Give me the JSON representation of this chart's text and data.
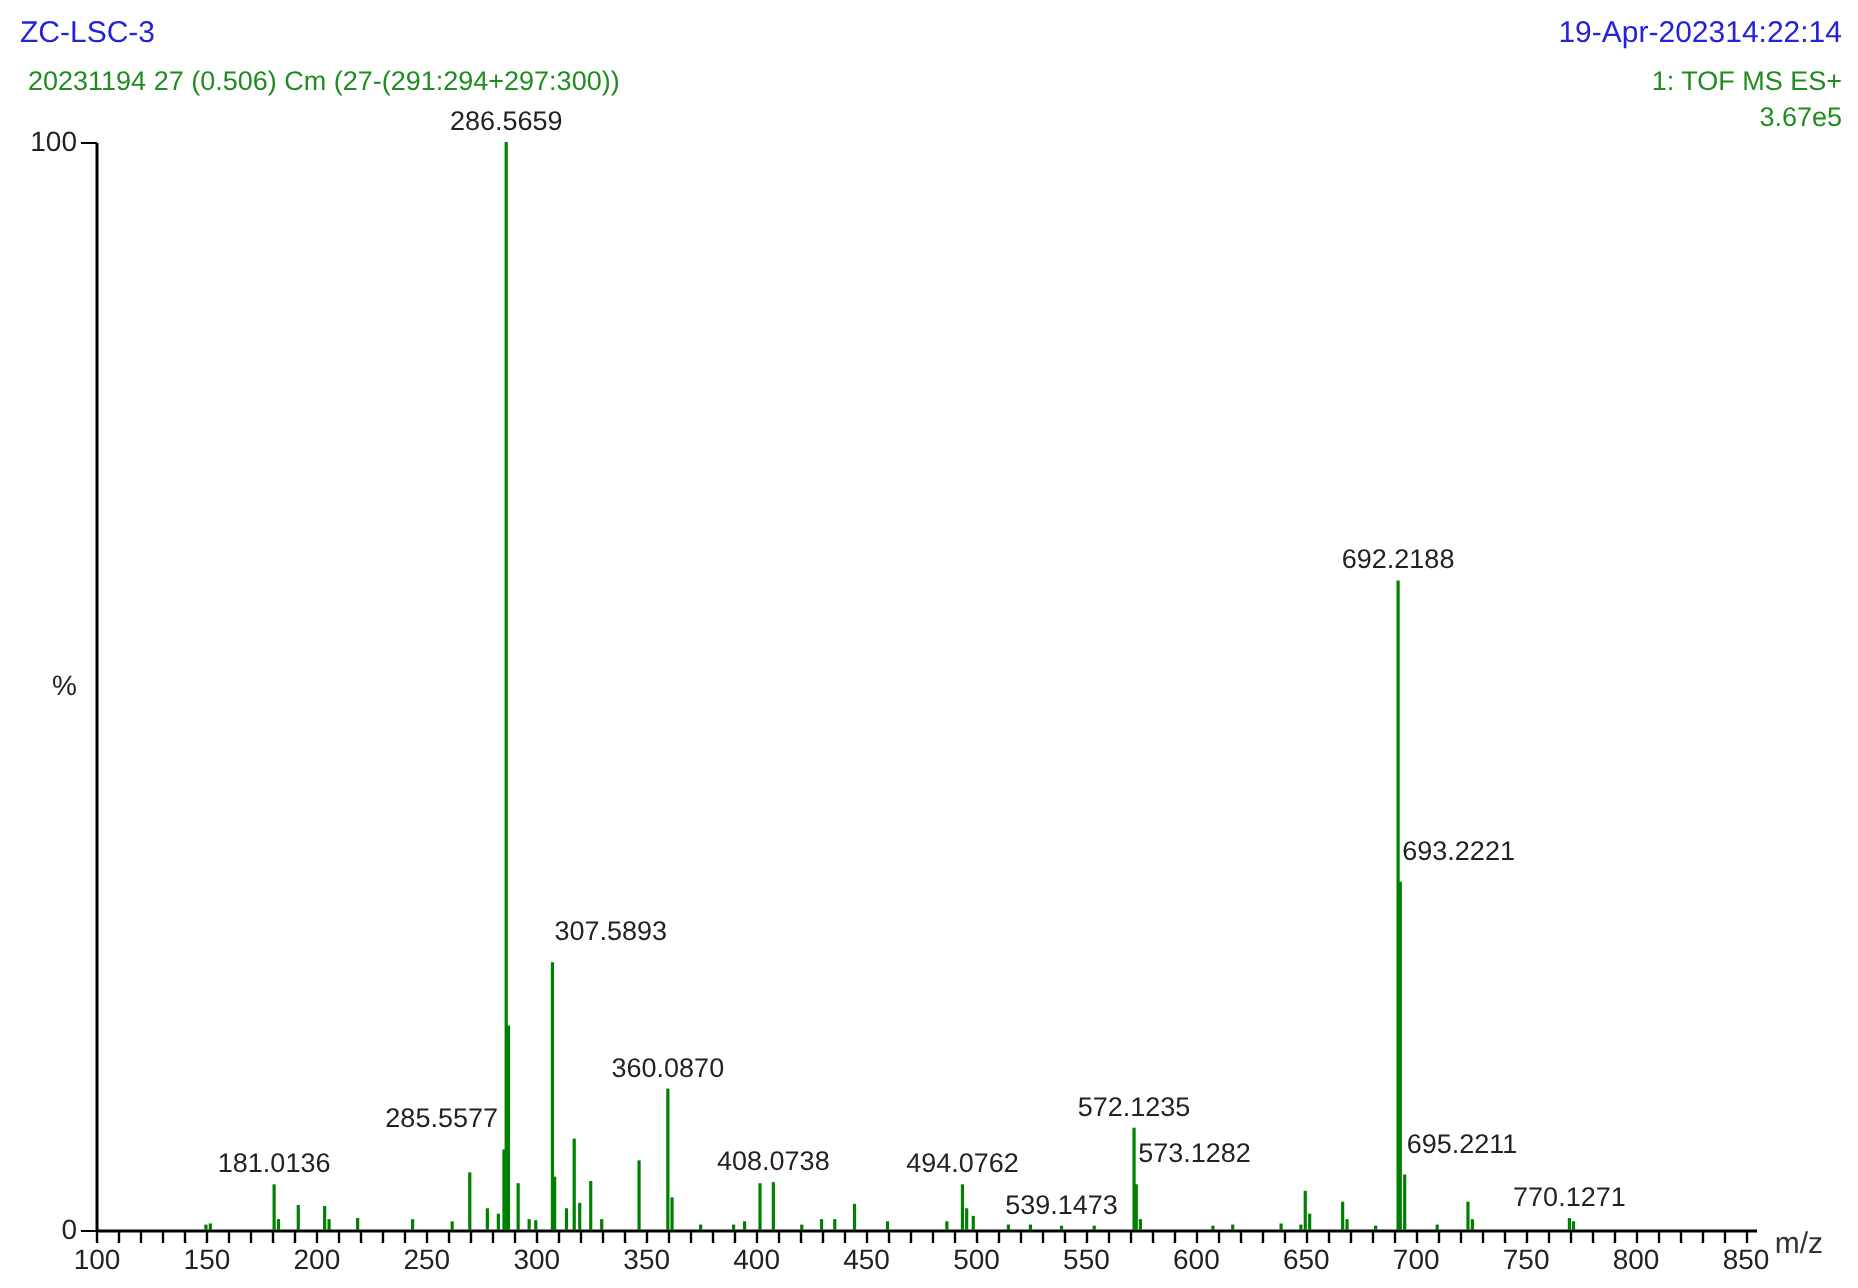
{
  "chart_data": {
    "type": "bar",
    "title": "ZC-LSC-3",
    "subtitle": "20231194 27 (0.506) Cm (27-(291:294+297:300))",
    "xlabel": "m/z",
    "ylabel": "%",
    "x": [
      150,
      152,
      181.0136,
      183,
      192,
      204,
      206,
      219,
      244,
      262,
      270,
      278,
      283,
      285.5577,
      286.5659,
      287.6,
      292,
      297,
      300,
      307.5893,
      308.6,
      314,
      317.5,
      320,
      325,
      330,
      347,
      360.087,
      362,
      375,
      390,
      395,
      402,
      408.0738,
      421,
      430,
      436,
      445,
      460,
      487,
      494.0762,
      496,
      499,
      515,
      525,
      539.1473,
      554,
      572.1235,
      573.1282,
      575,
      608,
      617,
      639,
      648,
      650,
      652,
      667,
      669,
      682,
      692.2188,
      693.2221,
      695.2211,
      710,
      724,
      726,
      770.1271,
      772
    ],
    "values": [
      0.5,
      0.6,
      4.2,
      1.0,
      2.3,
      2.2,
      1.0,
      1.1,
      1.0,
      0.8,
      5.3,
      2.0,
      1.5,
      7.4,
      100,
      18.8,
      4.3,
      1.0,
      0.9,
      24.6,
      4.9,
      2.0,
      8.4,
      2.5,
      4.5,
      1.0,
      6.4,
      13.0,
      3.0,
      0.5,
      0.5,
      0.8,
      4.3,
      4.4,
      0.5,
      1.0,
      1.0,
      2.4,
      0.8,
      0.8,
      4.2,
      2.0,
      1.3,
      0.5,
      0.5,
      0.4,
      0.4,
      9.4,
      4.2,
      1.0,
      0.4,
      0.5,
      0.6,
      0.5,
      3.6,
      1.5,
      2.6,
      1.0,
      0.4,
      59.7,
      32.0,
      5.1,
      0.5,
      2.6,
      1.0,
      1.1,
      0.8
    ],
    "color": "#008000",
    "xlim": [
      100,
      855
    ],
    "ylim": [
      0,
      100
    ],
    "xticks": [
      100,
      {
        "value": 110,
        "label": null
      },
      {
        "value": 120,
        "label": null
      },
      {
        "value": 130,
        "label": null
      },
      {
        "value": 140,
        "label": null
      },
      150,
      {
        "value": 160,
        "label": null
      },
      {
        "value": 170,
        "label": null
      },
      {
        "value": 180,
        "label": null
      },
      {
        "value": 190,
        "label": null
      },
      200,
      {
        "value": 210,
        "label": null
      },
      {
        "value": 220,
        "label": null
      },
      {
        "value": 230,
        "label": null
      },
      {
        "value": 240,
        "label": null
      },
      250,
      {
        "value": 260,
        "label": null
      },
      {
        "value": 270,
        "label": null
      },
      {
        "value": 280,
        "label": null
      },
      {
        "value": 290,
        "label": null
      },
      300,
      {
        "value": 310,
        "label": null
      },
      {
        "value": 320,
        "label": null
      },
      {
        "value": 330,
        "label": null
      },
      {
        "value": 340,
        "label": null
      },
      350,
      {
        "value": 360,
        "label": null
      },
      {
        "value": 370,
        "label": null
      },
      {
        "value": 380,
        "label": null
      },
      {
        "value": 390,
        "label": null
      },
      400,
      {
        "value": 410,
        "label": null
      },
      {
        "value": 420,
        "label": null
      },
      {
        "value": 430,
        "label": null
      },
      {
        "value": 440,
        "label": null
      },
      450,
      {
        "value": 460,
        "label": null
      },
      {
        "value": 470,
        "label": null
      },
      {
        "value": 480,
        "label": null
      },
      {
        "value": 490,
        "label": null
      },
      500,
      {
        "value": 510,
        "label": null
      },
      {
        "value": 520,
        "label": null
      },
      {
        "value": 530,
        "label": null
      },
      {
        "value": 540,
        "label": null
      },
      550,
      {
        "value": 560,
        "label": null
      },
      {
        "value": 570,
        "label": null
      },
      {
        "value": 580,
        "label": null
      },
      {
        "value": 590,
        "label": null
      },
      600,
      {
        "value": 610,
        "label": null
      },
      {
        "value": 620,
        "label": null
      },
      {
        "value": 630,
        "label": null
      },
      {
        "value": 640,
        "label": null
      },
      650,
      {
        "value": 660,
        "label": null
      },
      {
        "value": 670,
        "label": null
      },
      {
        "value": 680,
        "label": null
      },
      {
        "value": 690,
        "label": null
      },
      700,
      {
        "value": 710,
        "label": null
      },
      {
        "value": 720,
        "label": null
      },
      {
        "value": 730,
        "label": null
      },
      {
        "value": 740,
        "label": null
      },
      750,
      {
        "value": 760,
        "label": null
      },
      {
        "value": 770,
        "label": null
      },
      {
        "value": 780,
        "label": null
      },
      {
        "value": 790,
        "label": null
      },
      800,
      {
        "value": 810,
        "label": null
      },
      {
        "value": 820,
        "label": null
      },
      {
        "value": 830,
        "label": null
      },
      {
        "value": 840,
        "label": null
      },
      850
    ],
    "yticks": [
      0,
      100
    ],
    "annotations": [
      "19-Apr-202314:22:14",
      "1: TOF MS ES+",
      "3.67e5",
      {
        "text": "181.0136",
        "x": 181.0136,
        "y": 4.2
      },
      {
        "text": "285.5577",
        "x": 285.5577,
        "y": 7.4
      },
      {
        "text": "286.5659",
        "x": 286.5659,
        "y": 100
      },
      {
        "text": "307.5893",
        "x": 307.5893,
        "y": 24.6
      },
      {
        "text": "360.0870",
        "x": 360.087,
        "y": 13.0
      },
      {
        "text": "408.0738",
        "x": 408.0738,
        "y": 4.4
      },
      {
        "text": "494.0762",
        "x": 494.0762,
        "y": 4.2
      },
      {
        "text": "539.1473",
        "x": 539.1473,
        "y": 0.4
      },
      {
        "text": "572.1235",
        "x": 572.1235,
        "y": 9.4
      },
      {
        "text": "573.1282",
        "x": 573.1282,
        "y": 4.2
      },
      {
        "text": "692.2188",
        "x": 692.2188,
        "y": 59.7
      },
      {
        "text": "693.2221",
        "x": 693.2221,
        "y": 32.0
      },
      {
        "text": "695.2211",
        "x": 695.2211,
        "y": 5.1
      },
      {
        "text": "770.1271",
        "x": 770.1271,
        "y": 1.1
      }
    ]
  }
}
